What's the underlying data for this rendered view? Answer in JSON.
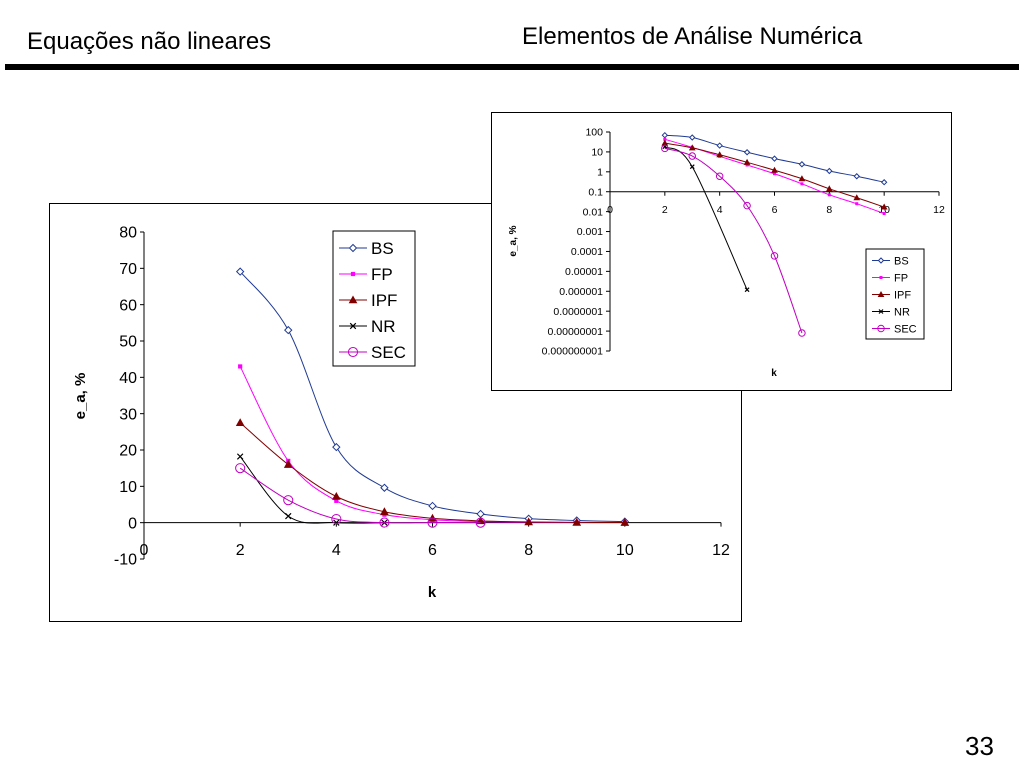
{
  "header": {
    "left_title": "Equações não lineares",
    "right_title": "Elementos de Análise Numérica"
  },
  "page_number": "33",
  "chart_data": [
    {
      "type": "line",
      "xlabel": "k",
      "ylabel": "e_a, %",
      "xlim": [
        0,
        12
      ],
      "ylim": [
        -10,
        80
      ],
      "x_ticks": [
        "0",
        "2",
        "4",
        "6",
        "8",
        "10",
        "12"
      ],
      "y_ticks": [
        "-10",
        "0",
        "10",
        "20",
        "30",
        "40",
        "50",
        "60",
        "70",
        "80"
      ],
      "legend_position": "top-right",
      "series": [
        {
          "name": "BS",
          "color": "#1f3a93",
          "marker": "diamond",
          "x": [
            2,
            3,
            4,
            5,
            6,
            7,
            8,
            9,
            10
          ],
          "y": [
            69.1,
            53.0,
            20.8,
            9.6,
            4.6,
            2.4,
            1.1,
            0.6,
            0.3
          ]
        },
        {
          "name": "FP",
          "color": "#ff00ff",
          "marker": "square",
          "x": [
            2,
            3,
            4,
            5,
            6,
            7,
            8,
            9,
            10
          ],
          "y": [
            43.0,
            17.0,
            6.0,
            2.2,
            0.8,
            0.3,
            0.1,
            0.04,
            0.01
          ]
        },
        {
          "name": "IPF",
          "color": "#800000",
          "marker": "triangle",
          "x": [
            2,
            3,
            4,
            5,
            6,
            7,
            8,
            9,
            10
          ],
          "y": [
            27.5,
            16.0,
            7.2,
            3.0,
            1.2,
            0.5,
            0.2,
            0.07,
            0.03
          ]
        },
        {
          "name": "NR",
          "color": "#000000",
          "marker": "x",
          "x": [
            2,
            3,
            4,
            5
          ],
          "y": [
            18.2,
            1.8,
            0.0,
            0.0
          ]
        },
        {
          "name": "SEC",
          "color": "#c000c0",
          "marker": "circle",
          "x": [
            2,
            3,
            4,
            5,
            6,
            7
          ],
          "y": [
            15.0,
            6.2,
            1.0,
            0.02,
            0.0,
            0.0
          ]
        }
      ]
    },
    {
      "type": "line",
      "yscale": "log",
      "xlabel": "k",
      "ylabel": "e_a, %",
      "xlim": [
        0,
        12
      ],
      "ylim": [
        1e-09,
        100
      ],
      "x_ticks": [
        "0",
        "2",
        "4",
        "6",
        "8",
        "10",
        "12"
      ],
      "y_ticks": [
        "100",
        "10",
        "1",
        "0.1",
        "0.01",
        "0.001",
        "0.0001",
        "0.00001",
        "0.000001",
        "0.0000001",
        "0.00000001",
        "0.000000001"
      ],
      "legend_position": "right",
      "series": [
        {
          "name": "BS",
          "color": "#1f3a93",
          "marker": "diamond",
          "x": [
            2,
            3,
            4,
            5,
            6,
            7,
            8,
            9,
            10
          ],
          "y": [
            69.1,
            53.0,
            20.8,
            9.6,
            4.6,
            2.4,
            1.1,
            0.6,
            0.3
          ]
        },
        {
          "name": "FP",
          "color": "#ff00ff",
          "marker": "square",
          "x": [
            2,
            3,
            4,
            5,
            6,
            7,
            8,
            9,
            10
          ],
          "y": [
            43.0,
            17.0,
            6.0,
            2.2,
            0.8,
            0.25,
            0.07,
            0.025,
            0.008
          ]
        },
        {
          "name": "IPF",
          "color": "#800000",
          "marker": "triangle",
          "x": [
            2,
            3,
            4,
            5,
            6,
            7,
            8,
            9,
            10
          ],
          "y": [
            27.5,
            16.0,
            7.2,
            3.0,
            1.2,
            0.45,
            0.14,
            0.05,
            0.017
          ]
        },
        {
          "name": "NR",
          "color": "#000000",
          "marker": "x",
          "x": [
            2,
            3,
            5
          ],
          "y": [
            18.2,
            1.8,
            1.2e-06
          ]
        },
        {
          "name": "SEC",
          "color": "#c000c0",
          "marker": "circle",
          "x": [
            2,
            3,
            4,
            5,
            6,
            7
          ],
          "y": [
            15.0,
            6.2,
            0.6,
            0.02,
            6e-05,
            8e-09
          ]
        }
      ]
    }
  ]
}
